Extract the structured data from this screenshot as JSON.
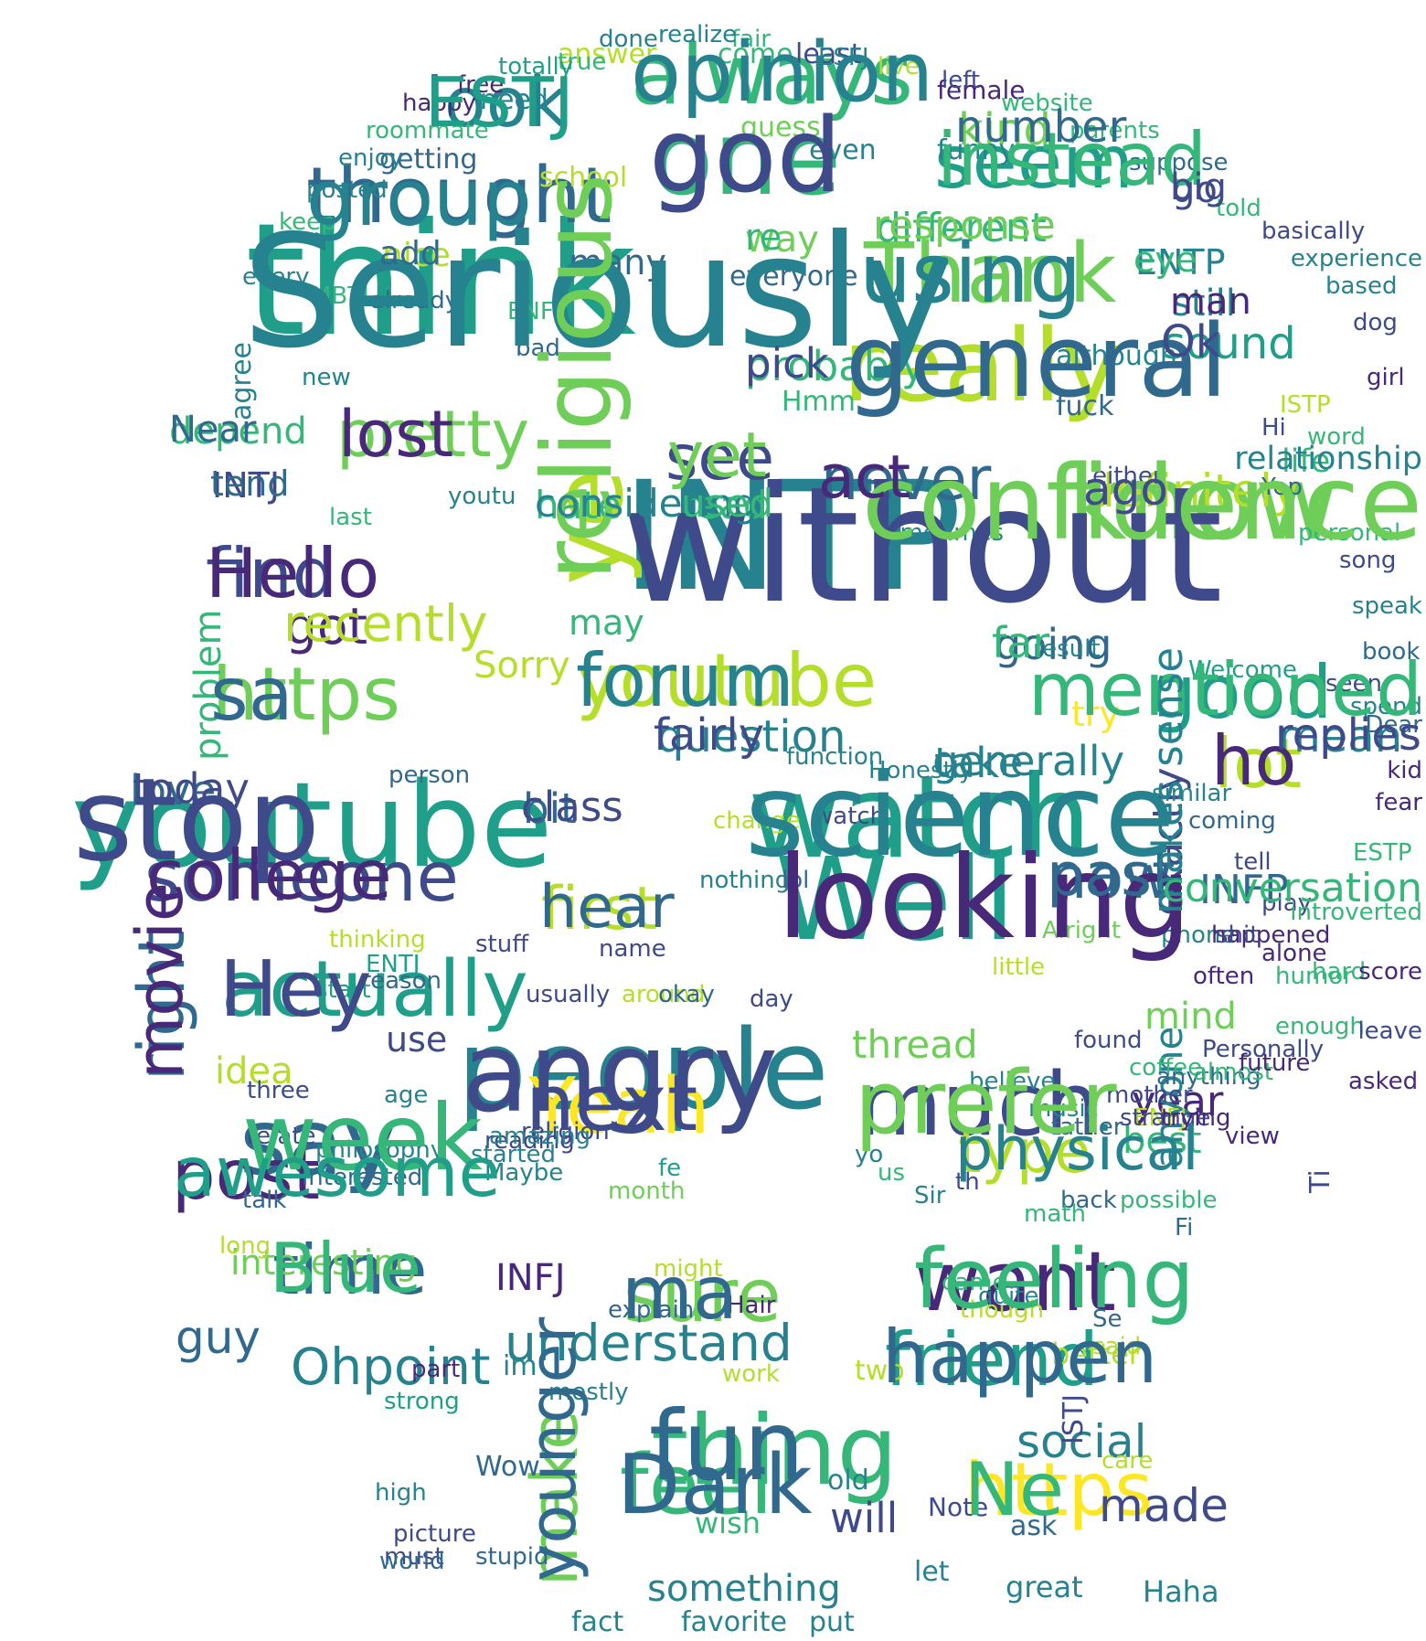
{
  "palette": [
    "#440154",
    "#482878",
    "#3e4a89",
    "#31688e",
    "#26828e",
    "#1f9e89",
    "#35b779",
    "#6ece58",
    "#b5de2b",
    "#fde725"
  ],
  "words": [
    {
      "text": "INTP",
      "color": "#26828e"
    },
    {
      "text": "think",
      "color": "#1f9e89"
    },
    {
      "text": "youtube",
      "color": "#1f9e89"
    },
    {
      "text": "watch",
      "color": "#1f9e89"
    },
    {
      "text": "people",
      "color": "#26828e"
    },
    {
      "text": "Well",
      "color": "#1f9e89"
    },
    {
      "text": "really",
      "color": "#b5de2b"
    },
    {
      "text": "know",
      "color": "#6ece58"
    },
    {
      "text": "one",
      "color": "#35b779"
    },
    {
      "text": "ye",
      "color": "#b5de2b"
    },
    {
      "text": "say",
      "color": "#31688e"
    },
    {
      "text": "much",
      "color": "#3e4a89"
    },
    {
      "text": "thing",
      "color": "#35b779"
    },
    {
      "text": "youtube",
      "color": "#b5de2b"
    },
    {
      "text": "https",
      "color": "#6ece58"
    },
    {
      "text": "Thank",
      "color": "#6ece58"
    },
    {
      "text": "always",
      "color": "#35b779"
    },
    {
      "text": "seem",
      "color": "#1f9e89"
    },
    {
      "text": "thought",
      "color": "#31688e"
    },
    {
      "text": "pretty",
      "color": "#6ece58"
    },
    {
      "text": "see",
      "color": "#3e4a89"
    },
    {
      "text": "find",
      "color": "#3e4a89"
    },
    {
      "text": "someone",
      "color": "#3e4a89"
    },
    {
      "text": "actually",
      "color": "#1f9e89"
    },
    {
      "text": "time",
      "color": "#31688e"
    },
    {
      "text": "post",
      "color": "#482878"
    },
    {
      "text": "want",
      "color": "#482878"
    },
    {
      "text": "friend",
      "color": "#1f9e89"
    },
    {
      "text": "feel",
      "color": "#35b779"
    },
    {
      "text": "https",
      "color": "#fde725"
    },
    {
      "text": "sure",
      "color": "#6ece58"
    },
    {
      "text": "Yeah",
      "color": "#fde725"
    },
    {
      "text": "good",
      "color": "#1f9e89"
    },
    {
      "text": "lot",
      "color": "#b5de2b"
    },
    {
      "text": "now",
      "color": "#31688e"
    },
    {
      "text": "first",
      "color": "#b5de2b"
    },
    {
      "text": "never",
      "color": "#31688e"
    },
    {
      "text": "look",
      "color": "#26828e"
    },
    {
      "text": "definitely",
      "color": "#b5de2b"
    },
    {
      "text": "type",
      "color": "#b5de2b"
    },
    {
      "text": "make",
      "color": "#6ece58"
    },
    {
      "text": "right",
      "color": "#31688e"
    },
    {
      "text": "got",
      "color": "#482878"
    },
    {
      "text": "hate",
      "color": "#35b779"
    },
    {
      "text": "read",
      "color": "#35b779"
    },
    {
      "text": "going",
      "color": "#31688e"
    },
    {
      "text": "mean",
      "color": "#26828e"
    },
    {
      "text": "question",
      "color": "#26828e"
    },
    {
      "text": "take",
      "color": "#26828e"
    },
    {
      "text": "love",
      "color": "#31688e"
    },
    {
      "text": "bit",
      "color": "#31688e"
    },
    {
      "text": "probably",
      "color": "#35b779"
    },
    {
      "text": "sound",
      "color": "#1f9e89"
    },
    {
      "text": "kind",
      "color": "#6ece58"
    },
    {
      "text": "different",
      "color": "#35b779"
    },
    {
      "text": "way",
      "color": "#6ece58"
    },
    {
      "text": "still",
      "color": "#26828e"
    },
    {
      "text": "ENTP",
      "color": "#26828e"
    },
    {
      "text": "go",
      "color": "#3e4a89"
    },
    {
      "text": "INTJ",
      "color": "#3e4a89"
    },
    {
      "text": "depend",
      "color": "#35b779"
    },
    {
      "text": "nice",
      "color": "#b5de2b"
    },
    {
      "text": "life",
      "color": "#35b779"
    },
    {
      "text": "exactly",
      "color": "#3e4a89"
    },
    {
      "text": "INFP",
      "color": "#31688e"
    },
    {
      "text": "thread",
      "color": "#6ece58"
    },
    {
      "text": "mind",
      "color": "#6ece58"
    },
    {
      "text": "year",
      "color": "#482878"
    },
    {
      "text": "best",
      "color": "#35b779"
    },
    {
      "text": "anyone",
      "color": "#26828e"
    },
    {
      "text": "idea",
      "color": "#b5de2b"
    },
    {
      "text": "use",
      "color": "#3e4a89"
    },
    {
      "text": "understand",
      "color": "#26828e"
    },
    {
      "text": "Ohpoint",
      "color": "#26828e"
    },
    {
      "text": "guy",
      "color": "#31688e"
    },
    {
      "text": "social",
      "color": "#26828e"
    },
    {
      "text": "made",
      "color": "#3e4a89"
    },
    {
      "text": "something",
      "color": "#26828e"
    },
    {
      "text": "will",
      "color": "#3e4a89"
    },
    {
      "text": "INFJ",
      "color": "#482878"
    },
    {
      "text": "interesting",
      "color": "#6ece58"
    },
    {
      "text": "Sorry",
      "color": "#b5de2b"
    },
    {
      "text": "may",
      "color": "#35b779"
    },
    {
      "text": "problem",
      "color": "#35b779"
    },
    {
      "text": "try",
      "color": "#fde725"
    },
    {
      "text": "many",
      "color": "#31688e"
    },
    {
      "text": "everyone",
      "color": "#31688e"
    },
    {
      "text": "Haha",
      "color": "#26828e"
    },
    {
      "text": "great",
      "color": "#26828e"
    },
    {
      "text": "fact",
      "color": "#26828e"
    },
    {
      "text": "favorite",
      "color": "#26828e"
    },
    {
      "text": "put",
      "color": "#26828e"
    },
    {
      "text": "let",
      "color": "#26828e"
    },
    {
      "text": "Wow",
      "color": "#31688e"
    },
    {
      "text": "im",
      "color": "#26828e"
    },
    {
      "text": "two",
      "color": "#b5de2b"
    },
    {
      "text": "better",
      "color": "#b5de2b"
    },
    {
      "text": "ISTJ",
      "color": "#3e4a89"
    },
    {
      "text": "ask",
      "color": "#31688e"
    },
    {
      "text": "old",
      "color": "#26828e"
    },
    {
      "text": "Note",
      "color": "#3e4a89"
    },
    {
      "text": "wish",
      "color": "#35b779"
    },
    {
      "text": "fuck",
      "color": "#31688e"
    },
    {
      "text": "although",
      "color": "#26828e"
    },
    {
      "text": "Hmm",
      "color": "#35b779"
    },
    {
      "text": "guess",
      "color": "#6ece58"
    },
    {
      "text": "even",
      "color": "#26828e"
    },
    {
      "text": "funny",
      "color": "#26828e"
    },
    {
      "text": "need",
      "color": "#26828e"
    },
    {
      "text": "getting",
      "color": "#31688e"
    },
    {
      "text": "come",
      "color": "#35b779"
    },
    {
      "text": "least",
      "color": "#3e4a89"
    },
    {
      "text": "answer",
      "color": "#b5de2b"
    },
    {
      "text": "school",
      "color": "#b5de2b"
    },
    {
      "text": "female",
      "color": "#482878"
    },
    {
      "text": "every",
      "color": "#26828e"
    },
    {
      "text": "MBTI",
      "color": "#35b779"
    },
    {
      "text": "already",
      "color": "#31688e"
    },
    {
      "text": "ENFP",
      "color": "#35b779"
    },
    {
      "text": "bad",
      "color": "#31688e"
    },
    {
      "text": "new",
      "color": "#26828e"
    },
    {
      "text": "agree",
      "color": "#26828e"
    },
    {
      "text": "last",
      "color": "#35b779"
    },
    {
      "text": "youtu",
      "color": "#26828e"
    },
    {
      "text": "sometimes",
      "color": "#26828e"
    },
    {
      "text": "either",
      "color": "#3e4a89"
    },
    {
      "text": "Hi",
      "color": "#3e4a89"
    },
    {
      "text": "ISTP",
      "color": "#b5de2b"
    },
    {
      "text": "result",
      "color": "#26828e"
    },
    {
      "text": "Welcome",
      "color": "#1f9e89"
    },
    {
      "text": "seen",
      "color": "#3e4a89"
    },
    {
      "text": "person",
      "color": "#31688e"
    },
    {
      "text": "change",
      "color": "#b5de2b"
    },
    {
      "text": "watch",
      "color": "#3e4a89"
    },
    {
      "text": "tell",
      "color": "#3e4a89"
    },
    {
      "text": "nothing",
      "color": "#26828e"
    },
    {
      "text": "lol",
      "color": "#31688e"
    },
    {
      "text": "ENTJ",
      "color": "#1f9e89"
    },
    {
      "text": "reason",
      "color": "#31688e"
    },
    {
      "text": "usually",
      "color": "#3e4a89"
    },
    {
      "text": "around",
      "color": "#b5de2b"
    },
    {
      "text": "little",
      "color": "#b5de2b"
    },
    {
      "text": "Alright",
      "color": "#6ece58"
    },
    {
      "text": "okay",
      "color": "#31688e"
    },
    {
      "text": "day",
      "color": "#3e4a89"
    },
    {
      "text": "religion",
      "color": "#3e4a89"
    },
    {
      "text": "reading",
      "color": "#3e4a89"
    },
    {
      "text": "started",
      "color": "#26828e"
    },
    {
      "text": "amazing",
      "color": "#26828e"
    },
    {
      "text": "talk",
      "color": "#31688e"
    },
    {
      "text": "long",
      "color": "#b5de2b"
    },
    {
      "text": "Maybe",
      "color": "#26828e"
    },
    {
      "text": "month",
      "color": "#6ece58"
    },
    {
      "text": "believe",
      "color": "#26828e"
    },
    {
      "text": "music",
      "color": "#26828e"
    },
    {
      "text": "father",
      "color": "#31688e"
    },
    {
      "text": "back",
      "color": "#31688e"
    },
    {
      "text": "math",
      "color": "#35b779"
    },
    {
      "text": "might",
      "color": "#b5de2b"
    },
    {
      "text": "came",
      "color": "#35b779"
    },
    {
      "text": "quite",
      "color": "#26828e"
    },
    {
      "text": "explain",
      "color": "#31688e"
    },
    {
      "text": "though",
      "color": "#b5de2b"
    },
    {
      "text": "Hair",
      "color": "#482878"
    },
    {
      "text": "possible",
      "color": "#35b779"
    },
    {
      "text": "ENFJ",
      "color": "#b5de2b"
    },
    {
      "text": "Personally",
      "color": "#3e4a89"
    },
    {
      "text": "Sir",
      "color": "#26828e"
    },
    {
      "text": "us",
      "color": "#35b779"
    },
    {
      "text": "fe",
      "color": "#1f9e89"
    },
    {
      "text": "yo",
      "color": "#26828e"
    },
    {
      "text": "th",
      "color": "#3e4a89"
    },
    {
      "text": "Fi",
      "color": "#31688e"
    },
    {
      "text": "Ti",
      "color": "#3e4a89"
    },
    {
      "text": "Se",
      "color": "#31688e"
    },
    {
      "text": "said",
      "color": "#b5de2b"
    },
    {
      "text": "part",
      "color": "#482878"
    },
    {
      "text": "work",
      "color": "#b5de2b"
    },
    {
      "text": "mostly",
      "color": "#26828e"
    },
    {
      "text": "high",
      "color": "#26828e"
    },
    {
      "text": "picture",
      "color": "#3e4a89"
    },
    {
      "text": "stupid",
      "color": "#31688e"
    },
    {
      "text": "must",
      "color": "#3e4a89"
    },
    {
      "text": "world",
      "color": "#31688e"
    },
    {
      "text": "care",
      "color": "#b5de2b"
    },
    {
      "text": "strong",
      "color": "#1f9e89"
    },
    {
      "text": "interested",
      "color": "#31688e"
    },
    {
      "text": "three",
      "color": "#3e4a89"
    },
    {
      "text": "relate",
      "color": "#3e4a89"
    },
    {
      "text": "philosophy",
      "color": "#26828e"
    },
    {
      "text": "thinking",
      "color": "#b5de2b"
    },
    {
      "text": "stuff",
      "color": "#3e4a89"
    },
    {
      "text": "name",
      "color": "#3e4a89"
    },
    {
      "text": "start",
      "color": "#1f9e89"
    },
    {
      "text": "age",
      "color": "#26828e"
    },
    {
      "text": "strange",
      "color": "#3e4a89"
    },
    {
      "text": "mother",
      "color": "#3e4a89"
    },
    {
      "text": "found",
      "color": "#3e4a89"
    },
    {
      "text": "coffee",
      "color": "#35b779"
    },
    {
      "text": "anything",
      "color": "#31688e"
    },
    {
      "text": "function",
      "color": "#26828e"
    },
    {
      "text": "Honestly",
      "color": "#26828e"
    },
    {
      "text": "similar",
      "color": "#26828e"
    },
    {
      "text": "coming",
      "color": "#31688e"
    },
    {
      "text": "play",
      "color": "#3e4a89"
    },
    {
      "text": "phone",
      "color": "#26828e"
    },
    {
      "text": "happened",
      "color": "#482878"
    },
    {
      "text": "shit",
      "color": "#3e4a89"
    },
    {
      "text": "often",
      "color": "#482878"
    },
    {
      "text": "humor",
      "color": "#35b779"
    },
    {
      "text": "hard",
      "color": "#35b779"
    },
    {
      "text": "alone",
      "color": "#482878"
    },
    {
      "text": "enough",
      "color": "#35b779"
    },
    {
      "text": "almost",
      "color": "#35b779"
    },
    {
      "text": "future",
      "color": "#482878"
    },
    {
      "text": "trying",
      "color": "#482878"
    },
    {
      "text": "view",
      "color": "#482878"
    },
    {
      "text": "asked",
      "color": "#482878"
    },
    {
      "text": "leave",
      "color": "#3e4a89"
    },
    {
      "text": "score",
      "color": "#482878"
    },
    {
      "text": "introverted",
      "color": "#35b779"
    },
    {
      "text": "ESTP",
      "color": "#35b779"
    },
    {
      "text": "fear",
      "color": "#482878"
    },
    {
      "text": "kid",
      "color": "#482878"
    },
    {
      "text": "Dear",
      "color": "#31688e"
    },
    {
      "text": "spend",
      "color": "#26828e"
    },
    {
      "text": "book",
      "color": "#31688e"
    },
    {
      "text": "speak",
      "color": "#26828e"
    },
    {
      "text": "song",
      "color": "#3e4a89"
    },
    {
      "text": "personal",
      "color": "#35b779"
    },
    {
      "text": "Yep",
      "color": "#31688e"
    },
    {
      "text": "word",
      "color": "#35b779"
    },
    {
      "text": "girl",
      "color": "#482878"
    },
    {
      "text": "dog",
      "color": "#3e4a89"
    },
    {
      "text": "based",
      "color": "#26828e"
    },
    {
      "text": "experience",
      "color": "#26828e"
    },
    {
      "text": "basically",
      "color": "#3e4a89"
    },
    {
      "text": "told",
      "color": "#35b779"
    },
    {
      "text": "suppose",
      "color": "#31688e"
    },
    {
      "text": "parents",
      "color": "#35b779"
    },
    {
      "text": "website",
      "color": "#35b779"
    },
    {
      "text": "left",
      "color": "#3e4a89"
    },
    {
      "text": "live",
      "color": "#b5de2b"
    },
    {
      "text": "ESFJ",
      "color": "#26828e"
    },
    {
      "text": "fair",
      "color": "#35b779"
    },
    {
      "text": "realize",
      "color": "#26828e"
    },
    {
      "text": "done",
      "color": "#26828e"
    },
    {
      "text": "true",
      "color": "#35b779"
    },
    {
      "text": "totally",
      "color": "#1f9e89"
    },
    {
      "text": "free",
      "color": "#482878"
    },
    {
      "text": "happy",
      "color": "#482878"
    },
    {
      "text": "roommate",
      "color": "#35b779"
    },
    {
      "text": "enjoy",
      "color": "#26828e"
    },
    {
      "text": "posted",
      "color": "#26828e"
    },
    {
      "text": "keep",
      "color": "#35b779"
    },
    {
      "text": "without",
      "color": "#3e4a89"
    },
    {
      "text": "Seriously",
      "color": "#26828e"
    },
    {
      "text": "stop",
      "color": "#3e4a89"
    },
    {
      "text": "science",
      "color": "#26828e"
    },
    {
      "text": "angry",
      "color": "#3e4a89"
    },
    {
      "text": "looking",
      "color": "#482878"
    },
    {
      "text": "general",
      "color": "#31688e"
    },
    {
      "text": "confidence",
      "color": "#6ece58"
    },
    {
      "text": "god",
      "color": "#3e4a89"
    },
    {
      "text": "religious",
      "color": "#6ece58"
    },
    {
      "text": "week",
      "color": "#35b779"
    },
    {
      "text": "prefer",
      "color": "#6ece58"
    },
    {
      "text": "fun",
      "color": "#31688e"
    },
    {
      "text": "forum",
      "color": "#26828e"
    },
    {
      "text": "sa",
      "color": "#31688e"
    },
    {
      "text": "using",
      "color": "#26828e"
    },
    {
      "text": "opinion",
      "color": "#26828e"
    },
    {
      "text": "instead",
      "color": "#35b779"
    },
    {
      "text": "group",
      "color": "#26828e"
    },
    {
      "text": "lost",
      "color": "#482878"
    },
    {
      "text": "yet",
      "color": "#6ece58"
    },
    {
      "text": "Hello",
      "color": "#482878"
    },
    {
      "text": "college",
      "color": "#482878"
    },
    {
      "text": "Hey",
      "color": "#3e4a89"
    },
    {
      "text": "Blue",
      "color": "#35b779"
    },
    {
      "text": "awesome",
      "color": "#1f9e89"
    },
    {
      "text": "feeling",
      "color": "#35b779"
    },
    {
      "text": "happen",
      "color": "#31688e"
    },
    {
      "text": "Dark",
      "color": "#31688e"
    },
    {
      "text": "Ne",
      "color": "#35b779"
    },
    {
      "text": "ma",
      "color": "#31688e"
    },
    {
      "text": "next",
      "color": "#3e4a89"
    },
    {
      "text": "mentioned",
      "color": "#35b779"
    },
    {
      "text": "ho",
      "color": "#482878"
    },
    {
      "text": "past",
      "color": "#31688e"
    },
    {
      "text": "hear",
      "color": "#31688e"
    },
    {
      "text": "act",
      "color": "#482878"
    },
    {
      "text": "ESTJ",
      "color": "#1f9e89"
    },
    {
      "text": "ago",
      "color": "#3e4a89"
    },
    {
      "text": "physical",
      "color": "#26828e"
    },
    {
      "text": "younger",
      "color": "#31688e"
    },
    {
      "text": "movie",
      "color": "#482878"
    },
    {
      "text": "recently",
      "color": "#b5de2b"
    },
    {
      "text": "considering",
      "color": "#26828e"
    },
    {
      "text": "used",
      "color": "#35b779"
    },
    {
      "text": "far",
      "color": "#35b779"
    },
    {
      "text": "replies",
      "color": "#3e4a89"
    },
    {
      "text": "fairly",
      "color": "#3e4a89"
    },
    {
      "text": "generally",
      "color": "#26828e"
    },
    {
      "text": "today",
      "color": "#3e4a89"
    },
    {
      "text": "class",
      "color": "#3e4a89"
    },
    {
      "text": "pick",
      "color": "#3e4a89"
    },
    {
      "text": "Ok",
      "color": "#3e4a89"
    },
    {
      "text": "number",
      "color": "#31688e"
    },
    {
      "text": "response",
      "color": "#6ece58"
    },
    {
      "text": "re",
      "color": "#35b779"
    },
    {
      "text": "man",
      "color": "#482878"
    },
    {
      "text": "eye",
      "color": "#35b779"
    },
    {
      "text": "big",
      "color": "#3e4a89"
    },
    {
      "text": "tend",
      "color": "#31688e"
    },
    {
      "text": "Near",
      "color": "#31688e"
    },
    {
      "text": "add",
      "color": "#31688e"
    },
    {
      "text": "relationship",
      "color": "#26828e"
    },
    {
      "text": "makes sense",
      "color": "#26828e"
    },
    {
      "text": "conversation",
      "color": "#35b779"
    }
  ]
}
